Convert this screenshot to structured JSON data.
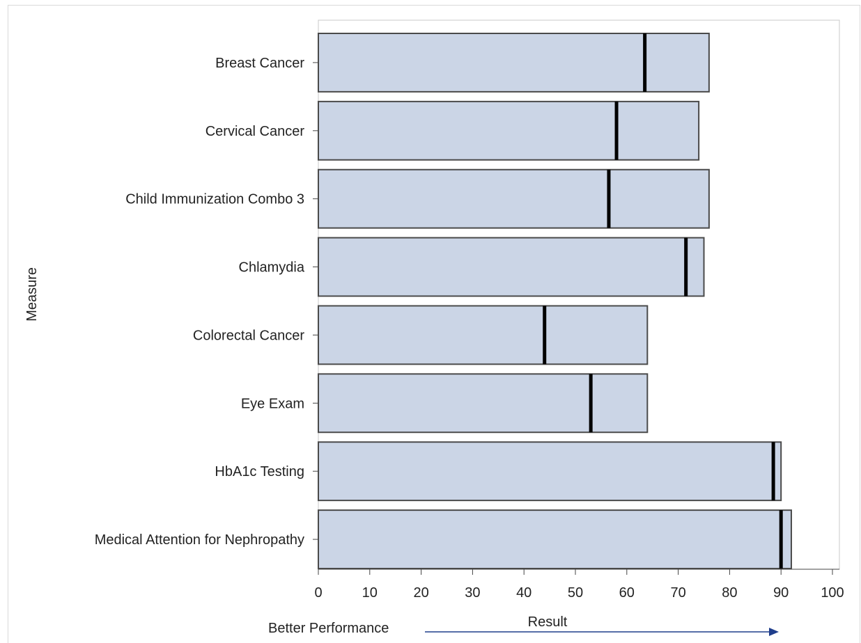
{
  "chart_data": {
    "type": "bar",
    "orientation": "horizontal",
    "categories": [
      "Breast Cancer",
      "Cervical Cancer",
      "Child Immunization Combo 3",
      "Chlamydia",
      "Colorectal Cancer",
      "Eye Exam",
      "HbA1c Testing",
      "Medical Attention for Nephropathy"
    ],
    "series": [
      {
        "values": [
          76,
          74,
          76,
          75,
          64,
          64,
          90,
          92
        ]
      },
      {
        "marker": "target-line",
        "values": [
          63.5,
          58,
          56.5,
          71.5,
          44,
          53,
          88.5,
          90
        ]
      }
    ],
    "xlabel": "Result",
    "ylabel": "Measure",
    "xlim": [
      0,
      100
    ],
    "xticks": [
      0,
      10,
      20,
      30,
      40,
      50,
      60,
      70,
      80,
      90,
      100
    ],
    "annotation": "Better Performance",
    "grid": false,
    "colors": {
      "bar_fill": "#cbd5e6",
      "bar_stroke": "#4a4a4a",
      "target": "#000000",
      "arrow": "#1f3e8c"
    }
  }
}
